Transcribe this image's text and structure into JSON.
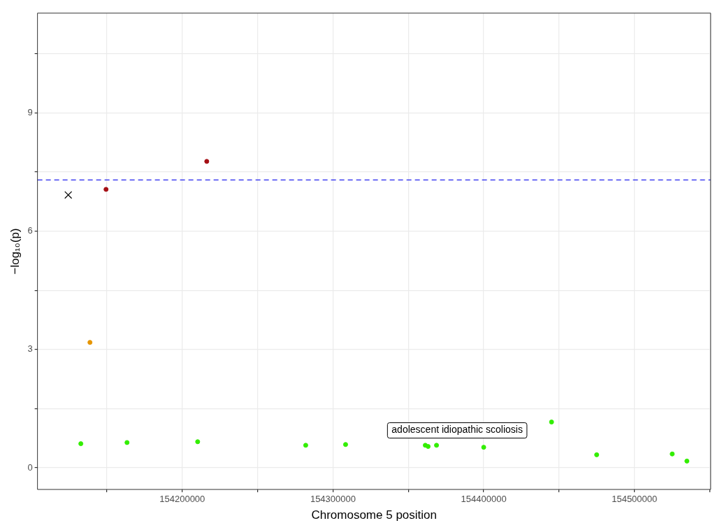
{
  "chart_data": {
    "type": "scatter",
    "xlabel": "Chromosome 5 position",
    "ylabel": "−log₁₀(p)",
    "xlim": [
      154103940,
      154550580
    ],
    "ylim": [
      -0.55,
      11.53
    ],
    "xticks": [
      {
        "value": 154150000,
        "label": null
      },
      154200000,
      {
        "value": 154250000,
        "label": null
      },
      154300000,
      {
        "value": 154350000,
        "label": null
      },
      154400000,
      {
        "value": 154450000,
        "label": null
      },
      154500000,
      {
        "value": 154550000,
        "label": null
      }
    ],
    "yticks": [
      0,
      {
        "value": 1.5,
        "label": null
      },
      3,
      {
        "value": 4.5,
        "label": null
      },
      6,
      {
        "value": 7.5,
        "label": null
      },
      9,
      {
        "value": 10.5,
        "label": null
      }
    ],
    "grid": true,
    "legend": false,
    "marker": "circle",
    "series": [
      {
        "color": "#33ee00",
        "x": [
          154132700,
          154163340,
          154210210,
          154281900,
          154308350,
          154361250,
          154363110,
          154368680,
          154400000,
          154445000,
          154474940,
          154525060,
          154534800
        ],
        "values": [
          0.61,
          0.64,
          0.66,
          0.57,
          0.59,
          0.57,
          0.54,
          0.57,
          0.52,
          1.16,
          0.33,
          0.35,
          0.17
        ]
      },
      {
        "color": "#e69500",
        "x": [
          154138750
        ],
        "values": [
          3.18
        ]
      },
      {
        "color": "#a50f15",
        "x": [
          154149420,
          154216240
        ],
        "values": [
          7.06,
          7.77
        ]
      },
      {
        "color": "#000000",
        "marker": "cross",
        "x": [
          154124360
        ],
        "values": [
          6.92
        ]
      }
    ],
    "ref_lines": [
      {
        "axis": "y",
        "value": 7.3,
        "color": "#2222ee",
        "line_style": "dashed"
      }
    ],
    "annotations": [
      {
        "text": "adolescent idiopathic scoliosis",
        "x": 154445000,
        "y": 1.16
      }
    ]
  }
}
